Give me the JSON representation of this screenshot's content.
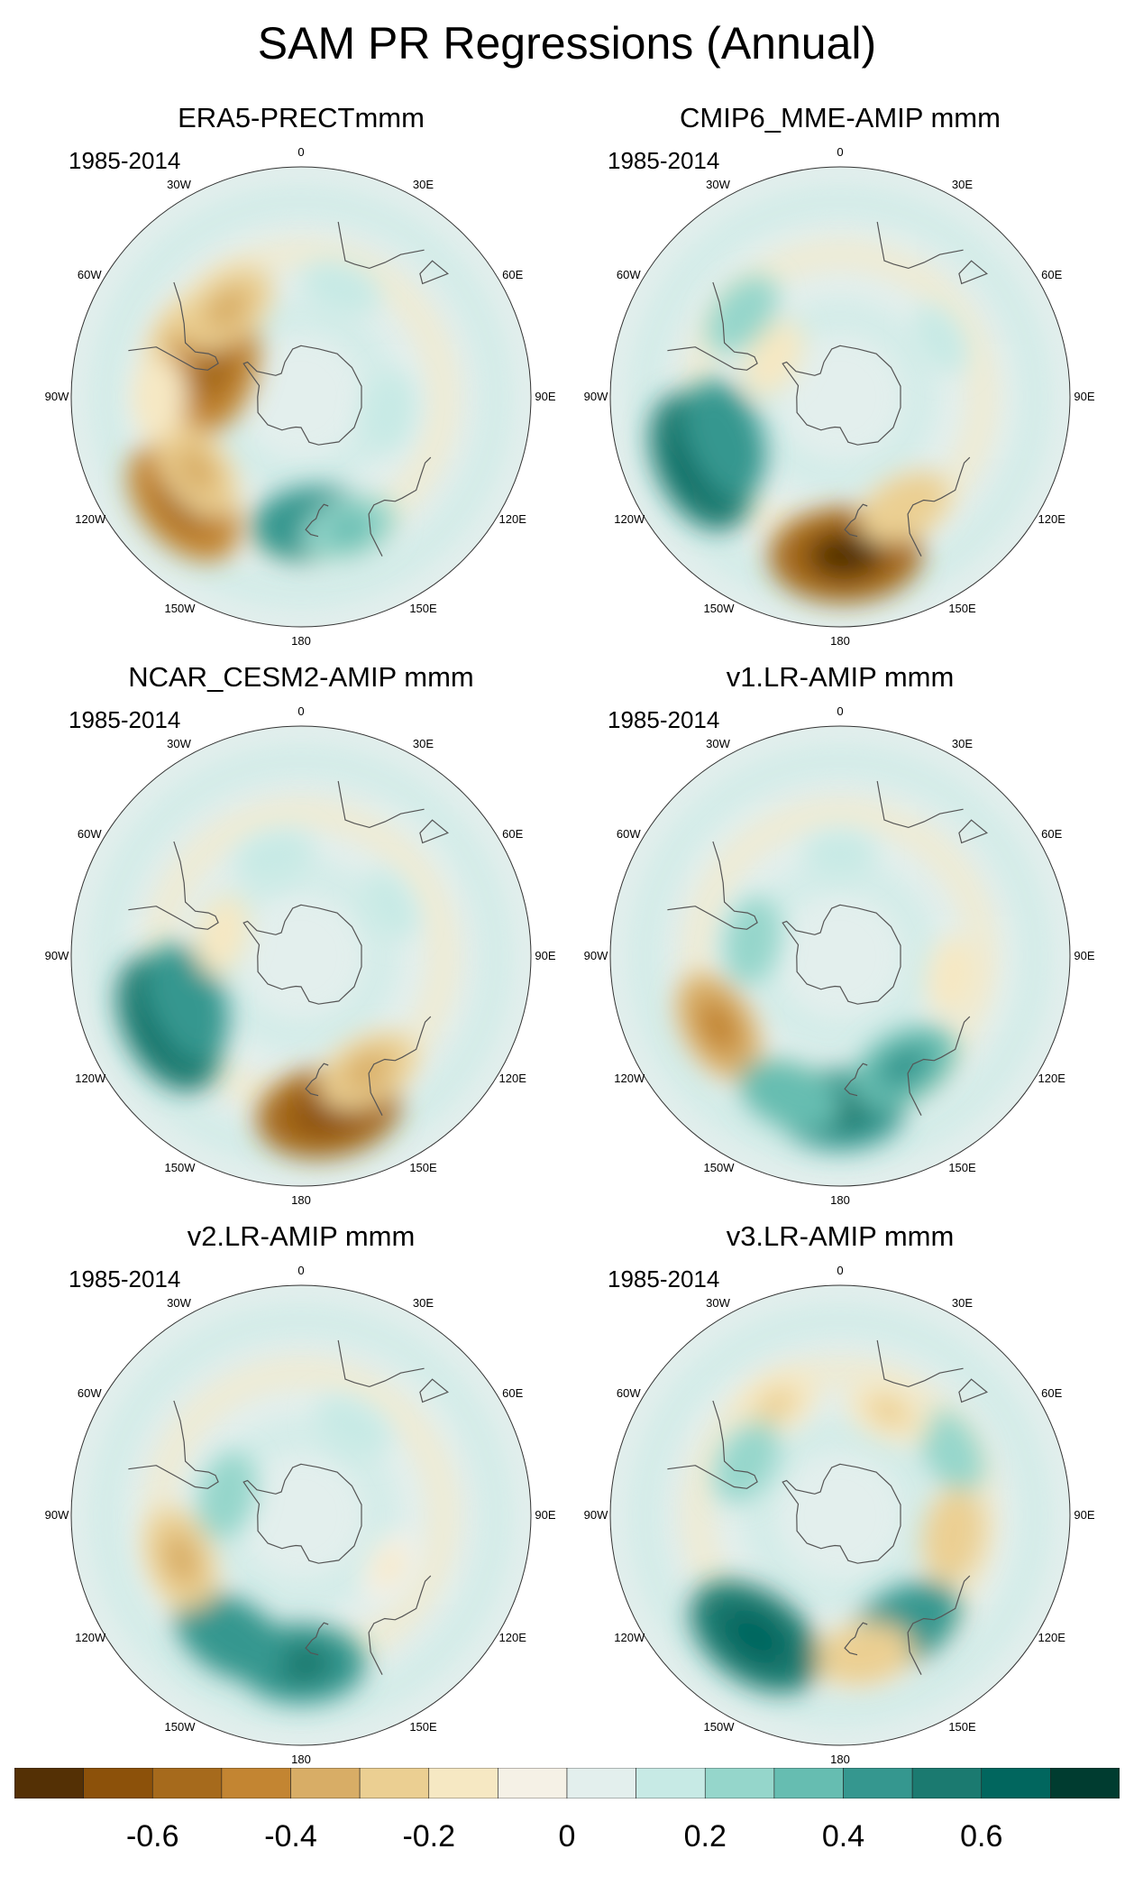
{
  "title": "SAM PR Regressions (Annual)",
  "period": "1985-2014",
  "longitude_labels": [
    "0",
    "30E",
    "60E",
    "90E",
    "120E",
    "150E",
    "180",
    "150W",
    "120W",
    "90W",
    "60W",
    "30W"
  ],
  "panels": [
    {
      "id": "era5",
      "title": "ERA5-PRECTmmm",
      "anomalies": [
        {
          "lon": 292,
          "lat": -40,
          "v": -0.3
        },
        {
          "lon": 288,
          "lat": -54,
          "v": -0.5
        },
        {
          "lon": 320,
          "lat": -45,
          "v": -0.3
        },
        {
          "lon": 228,
          "lat": -28,
          "v": -0.5
        },
        {
          "lon": 235,
          "lat": -40,
          "v": -0.3
        },
        {
          "lon": 175,
          "lat": -40,
          "v": 0.4
        },
        {
          "lon": 160,
          "lat": -35,
          "v": 0.25
        },
        {
          "lon": 270,
          "lat": -35,
          "v": -0.15
        },
        {
          "lon": 20,
          "lat": -45,
          "v": 0.15
        },
        {
          "lon": 100,
          "lat": -55,
          "v": 0.15
        }
      ]
    },
    {
      "id": "cmip6",
      "title": "CMIP6_MME-AMIP  mmm",
      "anomalies": [
        {
          "lon": 245,
          "lat": -30,
          "v": 0.55
        },
        {
          "lon": 250,
          "lat": -42,
          "v": 0.4
        },
        {
          "lon": 178,
          "lat": -28,
          "v": -0.6
        },
        {
          "lon": 150,
          "lat": -40,
          "v": -0.25
        },
        {
          "lon": 300,
          "lat": -60,
          "v": -0.15
        },
        {
          "lon": 310,
          "lat": -40,
          "v": 0.2
        },
        {
          "lon": 60,
          "lat": -45,
          "v": 0.1
        }
      ]
    },
    {
      "id": "ncar",
      "title": "NCAR_CESM2-AMIP  mmm",
      "anomalies": [
        {
          "lon": 243,
          "lat": -32,
          "v": 0.55
        },
        {
          "lon": 248,
          "lat": -42,
          "v": 0.4
        },
        {
          "lon": 170,
          "lat": -28,
          "v": -0.55
        },
        {
          "lon": 150,
          "lat": -38,
          "v": -0.3
        },
        {
          "lon": 285,
          "lat": -58,
          "v": -0.15
        },
        {
          "lon": 345,
          "lat": -50,
          "v": 0.15
        },
        {
          "lon": 60,
          "lat": -50,
          "v": 0.1
        }
      ]
    },
    {
      "id": "v1",
      "title": "v1.LR-AMIP  mmm",
      "anomalies": [
        {
          "lon": 240,
          "lat": -35,
          "v": -0.35
        },
        {
          "lon": 180,
          "lat": -30,
          "v": 0.45
        },
        {
          "lon": 150,
          "lat": -40,
          "v": 0.35
        },
        {
          "lon": 200,
          "lat": -32,
          "v": 0.3
        },
        {
          "lon": 280,
          "lat": -55,
          "v": 0.2
        },
        {
          "lon": 100,
          "lat": -45,
          "v": -0.15
        },
        {
          "lon": 0,
          "lat": -50,
          "v": 0.1
        }
      ]
    },
    {
      "id": "v2",
      "title": "v2.LR-AMIP  mmm",
      "anomalies": [
        {
          "lon": 180,
          "lat": -32,
          "v": 0.45
        },
        {
          "lon": 210,
          "lat": -35,
          "v": 0.4
        },
        {
          "lon": 250,
          "lat": -40,
          "v": -0.3
        },
        {
          "lon": 285,
          "lat": -60,
          "v": 0.2
        },
        {
          "lon": 30,
          "lat": -50,
          "v": 0.15
        },
        {
          "lon": 120,
          "lat": -50,
          "v": -0.1
        }
      ]
    },
    {
      "id": "v3",
      "title": "v3.LR-AMIP  mmm",
      "anomalies": [
        {
          "lon": 215,
          "lat": -32,
          "v": 0.55
        },
        {
          "lon": 150,
          "lat": -40,
          "v": 0.4
        },
        {
          "lon": 170,
          "lat": -35,
          "v": -0.25
        },
        {
          "lon": 330,
          "lat": -40,
          "v": -0.2
        },
        {
          "lon": 60,
          "lat": -40,
          "v": 0.2
        },
        {
          "lon": 100,
          "lat": -45,
          "v": -0.25
        },
        {
          "lon": 300,
          "lat": -48,
          "v": 0.2
        },
        {
          "lon": 25,
          "lat": -45,
          "v": -0.2
        }
      ]
    }
  ],
  "colorbar": {
    "colors": [
      "#543005",
      "#8c510a",
      "#a66a1c",
      "#c38532",
      "#d8ad66",
      "#ebcf92",
      "#f6e8c3",
      "#f5f1e6",
      "#e3efed",
      "#c7eae5",
      "#95d6cb",
      "#66bdb1",
      "#35978f",
      "#1b7a70",
      "#01665e",
      "#003c30"
    ],
    "labels": [
      "-0.6",
      "-0.4",
      "-0.2",
      "0",
      "0.2",
      "0.4",
      "0.6"
    ],
    "label_values": [
      -0.6,
      -0.4,
      -0.2,
      0,
      0.2,
      0.4,
      0.6
    ],
    "vmin": -0.8,
    "vmax": 0.8
  }
}
